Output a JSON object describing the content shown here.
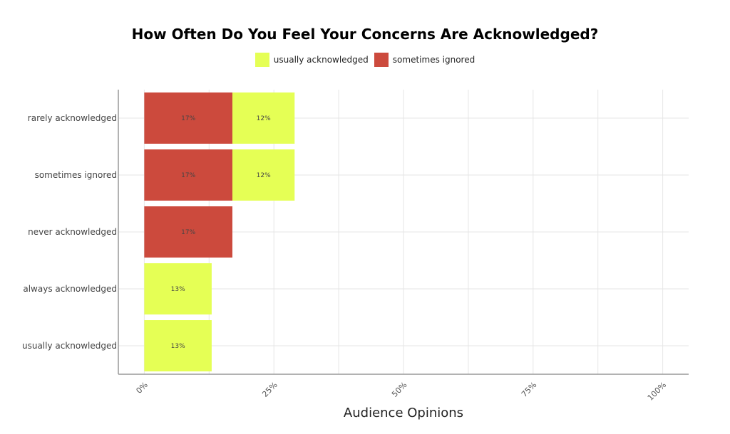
{
  "chart_data": {
    "type": "bar",
    "orientation": "horizontal",
    "stacked": true,
    "title": "How Often Do You Feel Your Concerns Are Acknowledged?",
    "xlabel": "Audience Opinions",
    "ylabel": "",
    "categories": [
      "rarely acknowledged",
      "sometimes ignored",
      "never acknowledged",
      "always acknowledged",
      "usually acknowledged"
    ],
    "series": [
      {
        "name": "sometimes ignored",
        "color": "#cc4a3d",
        "values": [
          17,
          17,
          17,
          0,
          0
        ],
        "labels": [
          "17%",
          "17%",
          "17%",
          "",
          ""
        ]
      },
      {
        "name": "usually acknowledged",
        "color": "#e5ff55",
        "values": [
          12,
          12,
          0,
          13,
          13
        ],
        "labels": [
          "12%",
          "12%",
          "",
          "13%",
          "13%"
        ]
      }
    ],
    "legend": [
      {
        "name": "usually acknowledged",
        "color": "#e5ff55"
      },
      {
        "name": "sometimes ignored",
        "color": "#cc4a3d"
      }
    ],
    "xticks": [
      "0%",
      "25%",
      "50%",
      "75%",
      "100%"
    ],
    "xlim": [
      -5,
      105
    ],
    "grid": true,
    "legend_position": "top"
  }
}
